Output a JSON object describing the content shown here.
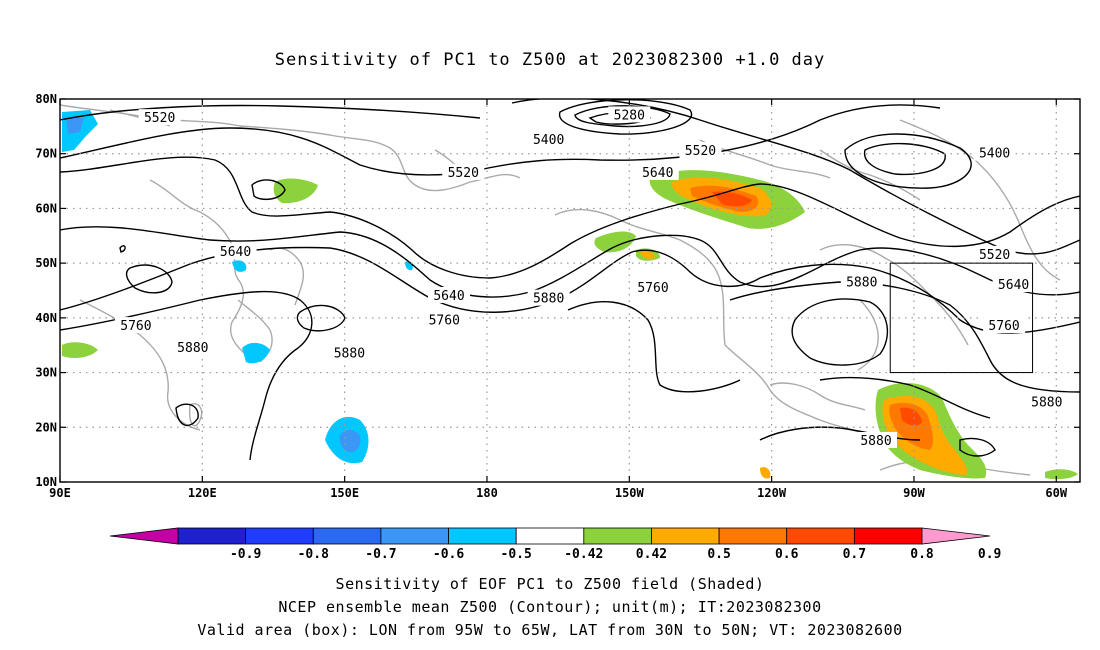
{
  "title": "Sensitivity of PC1 to Z500 at 2023082300 +1.0 day",
  "map": {
    "lon_min": 90,
    "lon_max": 305,
    "lat_min": 10,
    "lat_max": 80,
    "lat_ticks": [
      {
        "value": 80,
        "label": "80N"
      },
      {
        "value": 70,
        "label": "70N"
      },
      {
        "value": 60,
        "label": "60N"
      },
      {
        "value": 50,
        "label": "50N"
      },
      {
        "value": 40,
        "label": "40N"
      },
      {
        "value": 30,
        "label": "30N"
      },
      {
        "value": 20,
        "label": "20N"
      },
      {
        "value": 10,
        "label": "10N"
      }
    ],
    "lon_ticks": [
      {
        "value": 90,
        "label": "90E"
      },
      {
        "value": 120,
        "label": "120E"
      },
      {
        "value": 150,
        "label": "150E"
      },
      {
        "value": 180,
        "label": "180"
      },
      {
        "value": 210,
        "label": "150W"
      },
      {
        "value": 240,
        "label": "120W"
      },
      {
        "value": 270,
        "label": "90W"
      },
      {
        "value": 300,
        "label": "60W"
      }
    ],
    "valid_box": {
      "lon_min": 265,
      "lon_max": 295,
      "lat_min": 30,
      "lat_max": 50
    },
    "contour_labels": [
      {
        "text": "5520",
        "lon": 111,
        "lat": 76.5
      },
      {
        "text": "5280",
        "lon": 210,
        "lat": 77
      },
      {
        "text": "5400",
        "lon": 193,
        "lat": 72.5
      },
      {
        "text": "5520",
        "lon": 225,
        "lat": 70.5
      },
      {
        "text": "5400",
        "lon": 287,
        "lat": 70
      },
      {
        "text": "5520",
        "lon": 175,
        "lat": 66.5
      },
      {
        "text": "5640",
        "lon": 216,
        "lat": 66.5
      },
      {
        "text": "5640",
        "lon": 127,
        "lat": 52
      },
      {
        "text": "5520",
        "lon": 287,
        "lat": 51.5
      },
      {
        "text": "5880",
        "lon": 259,
        "lat": 46.5
      },
      {
        "text": "5640",
        "lon": 291,
        "lat": 46
      },
      {
        "text": "5640",
        "lon": 172,
        "lat": 44
      },
      {
        "text": "5760",
        "lon": 215,
        "lat": 45.5
      },
      {
        "text": "5880",
        "lon": 193,
        "lat": 43.5
      },
      {
        "text": "5760",
        "lon": 171,
        "lat": 39.5
      },
      {
        "text": "5760",
        "lon": 106,
        "lat": 38.5
      },
      {
        "text": "5760",
        "lon": 289,
        "lat": 38.5
      },
      {
        "text": "5880",
        "lon": 118,
        "lat": 34.5
      },
      {
        "text": "5880",
        "lon": 151,
        "lat": 33.5
      },
      {
        "text": "5880",
        "lon": 298,
        "lat": 24.5
      },
      {
        "text": "5880",
        "lon": 262,
        "lat": 17.5
      }
    ]
  },
  "colorbar": {
    "colors": [
      "#c400a4",
      "#1e22cc",
      "#1f3cff",
      "#2a6af0",
      "#3c96f5",
      "#00c8ff",
      "#ffffff",
      "#8cd23c",
      "#ffaa00",
      "#ff7800",
      "#ff4a00",
      "#ff0000",
      "#ff9ad0"
    ],
    "labels": [
      "-0.9",
      "-0.8",
      "-0.7",
      "-0.6",
      "-0.5",
      "-0.42",
      "0.42",
      "0.5",
      "0.6",
      "0.7",
      "0.8",
      "0.9"
    ]
  },
  "captions": {
    "line1": "Sensitivity of EOF PC1 to Z500 field (Shaded)",
    "line2": "NCEP ensemble mean Z500 (Contour); unit(m); IT:2023082300",
    "line3": "Valid area (box): LON from 95W to 65W, LAT from 30N to 50N; VT: 2023082600"
  }
}
